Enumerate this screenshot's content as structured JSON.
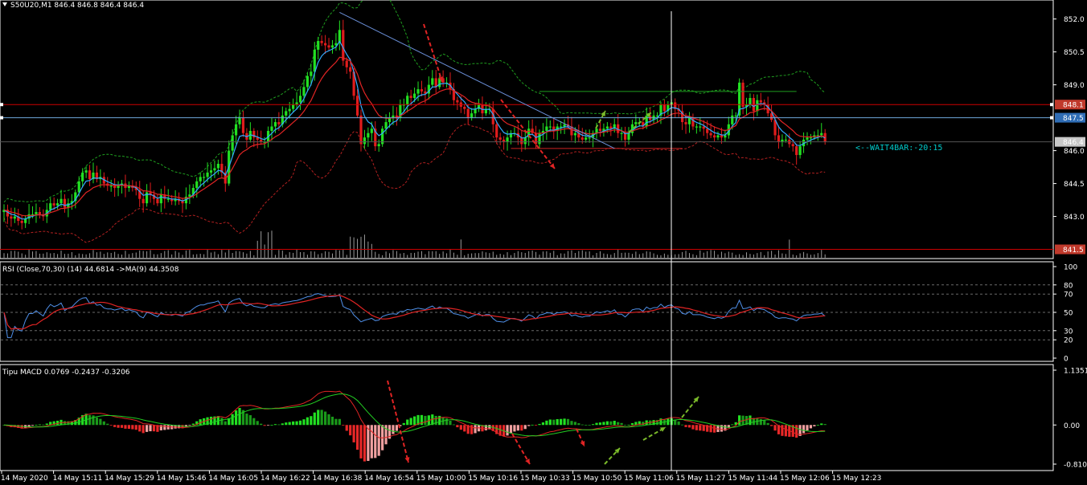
{
  "main_header": "S50U20,M1  846.4 846.8 846.4 846.4",
  "rsi_header": "RSI (Close,70,30) (14) 44.6814  ->MA(9) 44.3508",
  "macd_header": "Tipu MACD 0.0769 -0.2437 -0.3206",
  "wait_label": "<--WAIT4BAR:-20:15",
  "chart_data": [
    {
      "type": "candlestick",
      "symbol": "S50U20",
      "timeframe": "M1",
      "ohlc": {
        "open": 846.4,
        "high": 846.8,
        "low": 846.4,
        "close": 846.4
      },
      "ylim": [
        841.3,
        852.5
      ],
      "y_ticks": [
        "852.0",
        "850.5",
        "849.0",
        "846.0",
        "844.5",
        "843.0"
      ],
      "x_ticks": [
        "14 May 2020",
        "14 May 15:11",
        "14 May 15:29",
        "14 May 15:46",
        "14 May 16:05",
        "14 May 16:22",
        "14 May 16:38",
        "14 May 16:54",
        "15 May 10:00",
        "15 May 10:16",
        "15 May 10:33",
        "15 May 10:50",
        "15 May 11:06",
        "15 May 11:27",
        "15 May 11:44",
        "15 May 12:06",
        "15 May 12:23"
      ],
      "price_tags": [
        {
          "value": 848.1,
          "label": "848.1",
          "color": "#c0392b",
          "line": "#cc0000"
        },
        {
          "value": 847.5,
          "label": "847.5",
          "color": "#2f6db5",
          "line": "#6fa8dc"
        },
        {
          "value": 846.4,
          "label": "846.4",
          "color": "#c8c8c8",
          "line": "#555555"
        },
        {
          "value": 841.5,
          "label": "841.5",
          "color": "#c0392b",
          "line": "#cc0000"
        }
      ],
      "trendline": {
        "from": {
          "i": 94,
          "price": 852.3
        },
        "to": {
          "i": 171,
          "price": 846.1
        }
      },
      "closes": [
        843.3,
        843.0,
        842.9,
        843.0,
        842.8,
        842.7,
        842.9,
        843.1,
        843.1,
        843.2,
        843.1,
        843.0,
        843.3,
        843.6,
        843.5,
        843.6,
        843.8,
        843.4,
        843.6,
        843.7,
        844.1,
        844.6,
        845.0,
        845.1,
        844.7,
        845.0,
        844.7,
        844.8,
        844.5,
        844.4,
        844.4,
        844.3,
        844.4,
        844.5,
        844.3,
        844.4,
        844.3,
        844.2,
        843.8,
        843.6,
        844.1,
        844.0,
        843.8,
        843.6,
        844.0,
        843.8,
        843.8,
        843.7,
        843.8,
        843.7,
        843.6,
        843.9,
        844.0,
        844.3,
        844.6,
        844.8,
        844.8,
        845.0,
        845.1,
        845.2,
        845.4,
        845.0,
        844.5,
        846.0,
        846.7,
        847.2,
        847.5,
        846.8,
        846.5,
        846.9,
        846.6,
        846.5,
        846.4,
        846.4,
        846.9,
        847.1,
        847.3,
        847.2,
        847.6,
        847.8,
        847.9,
        848.1,
        848.2,
        848.5,
        848.9,
        849.4,
        849.6,
        850.6,
        851.0,
        850.9,
        850.8,
        850.7,
        850.8,
        850.9,
        851.5,
        850.1,
        849.8,
        849.6,
        848.5,
        847.6,
        846.3,
        846.6,
        846.8,
        847.0,
        846.2,
        846.3,
        847.0,
        847.3,
        847.5,
        847.6,
        847.5,
        848.1,
        848.1,
        848.5,
        848.4,
        848.6,
        848.8,
        848.7,
        848.6,
        849.0,
        849.3,
        848.9,
        849.3,
        849.1,
        849.1,
        848.8,
        848.3,
        848.2,
        848.0,
        847.9,
        847.5,
        847.7,
        847.9,
        848.1,
        847.7,
        847.9,
        847.9,
        847.2,
        846.6,
        846.5,
        846.4,
        846.6,
        846.8,
        846.8,
        846.6,
        846.3,
        846.6,
        847.0,
        846.8,
        846.3,
        846.8,
        846.9,
        847.1,
        847.1,
        846.9,
        847.1,
        847.1,
        847.2,
        847.1,
        846.7,
        846.8,
        846.6,
        846.5,
        846.6,
        846.6,
        846.8,
        847.0,
        846.9,
        847.0,
        847.1,
        847.0,
        847.2,
        846.8,
        846.8,
        846.5,
        846.8,
        847.2,
        847.3,
        847.3,
        847.1,
        847.6,
        847.4,
        847.6,
        847.6,
        848.1,
        847.8,
        848.1,
        848.2,
        847.9,
        847.8,
        847.3,
        847.2,
        847.5,
        847.1,
        847.1,
        847.1,
        847.0,
        846.8,
        846.7,
        846.6,
        846.7,
        846.6,
        846.7,
        847.2,
        847.6,
        847.6,
        849.1,
        848.0,
        848.1,
        848.4,
        847.8,
        848.3,
        848.2,
        848.1,
        847.7,
        847.4,
        846.7,
        846.4,
        846.5,
        846.5,
        846.3,
        846.2,
        845.8,
        846.2,
        846.5,
        846.6,
        846.6,
        846.7,
        846.7,
        846.8,
        846.4
      ]
    },
    {
      "type": "line",
      "indicator": "RSI",
      "period": 14,
      "value": 44.6814,
      "ma_period": 9,
      "ma_value": 44.3508,
      "ylim": [
        0,
        100
      ],
      "y_ticks": [
        100,
        80,
        70,
        50,
        30,
        20,
        0
      ],
      "levels": [
        80,
        70,
        50,
        30,
        20
      ]
    },
    {
      "type": "bar+line",
      "indicator": "Tipu MACD",
      "values": {
        "macd": 0.0769,
        "signal": -0.2437,
        "histogram": -0.3206
      },
      "ylim": [
        -0.8107,
        1.1351
      ],
      "y_ticks": [
        "1.1351",
        "0.00",
        "-0.8107"
      ]
    }
  ]
}
